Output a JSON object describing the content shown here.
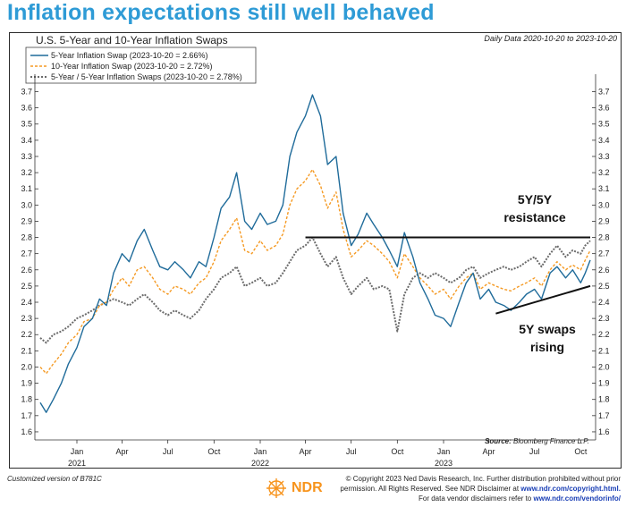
{
  "headline": "Inflation expectations still well behaved",
  "footer": {
    "customized": "Customized version of B781C",
    "copyright_line1": "© Copyright 2023 Ned Davis Research, Inc. Further distribution prohibited without prior",
    "copyright_line2_pre": "permission. All Rights Reserved. See NDR Disclaimer at",
    "copyright_link1": "www.ndr.com/copyright.html.",
    "copyright_line3_pre": "For data vendor disclaimers refer to",
    "copyright_link2": "www.ndr.com/vendorinfo/",
    "logo_text": "NDR"
  },
  "colors": {
    "headline": "#2e9bd6",
    "five_year": "#1f6b9a",
    "ten_year": "#f59a23",
    "five_five": "#6b6b6b",
    "logo": "#f7941d"
  },
  "chart_data": {
    "type": "line",
    "title": "U.S. 5-Year and 10-Year Inflation Swaps",
    "subtitle": "Daily Data 2020-10-20 to 2023-10-20",
    "source_label": "Source:",
    "source": "Bloomberg Finance L.P.",
    "ylim": [
      1.55,
      3.78
    ],
    "y_ticks": [
      "1.6",
      "1.7",
      "1.8",
      "1.9",
      "2.0",
      "2.1",
      "2.2",
      "2.3",
      "2.4",
      "2.5",
      "2.6",
      "2.7",
      "2.8",
      "2.9",
      "3.0",
      "3.1",
      "3.2",
      "3.3",
      "3.4",
      "3.5",
      "3.6",
      "3.7"
    ],
    "x_ticks": [
      "Jan",
      "Apr",
      "Jul",
      "Oct",
      "Jan",
      "Apr",
      "Jul",
      "Oct",
      "Jan",
      "Apr",
      "Jul",
      "Oct"
    ],
    "x_tick_dates": [
      "2021-01",
      "2021-04",
      "2021-07",
      "2021-10",
      "2022-01",
      "2022-04",
      "2022-07",
      "2022-10",
      "2023-01",
      "2023-04",
      "2023-07",
      "2023-10"
    ],
    "x_years": [
      {
        "label": "2021",
        "date": "2021-01"
      },
      {
        "label": "2022",
        "date": "2022-01"
      },
      {
        "label": "2023",
        "date": "2023-01"
      }
    ],
    "x_range": [
      "2020-10-20",
      "2023-10-20"
    ],
    "grid": false,
    "legend_position": "top-left",
    "series": [
      {
        "name": "5-Year Inflation Swap (2023-10-20 = 2.66%)",
        "style": "solid",
        "points": [
          [
            "2020-10-20",
            1.78
          ],
          [
            "2020-11-01",
            1.72
          ],
          [
            "2020-11-15",
            1.8
          ],
          [
            "2020-12-01",
            1.9
          ],
          [
            "2020-12-15",
            2.02
          ],
          [
            "2021-01-01",
            2.12
          ],
          [
            "2021-01-15",
            2.25
          ],
          [
            "2021-02-01",
            2.3
          ],
          [
            "2021-02-15",
            2.42
          ],
          [
            "2021-03-01",
            2.38
          ],
          [
            "2021-03-15",
            2.58
          ],
          [
            "2021-04-01",
            2.7
          ],
          [
            "2021-04-15",
            2.65
          ],
          [
            "2021-05-01",
            2.78
          ],
          [
            "2021-05-15",
            2.85
          ],
          [
            "2021-06-01",
            2.72
          ],
          [
            "2021-06-15",
            2.62
          ],
          [
            "2021-07-01",
            2.6
          ],
          [
            "2021-07-15",
            2.65
          ],
          [
            "2021-08-01",
            2.6
          ],
          [
            "2021-08-15",
            2.55
          ],
          [
            "2021-09-01",
            2.65
          ],
          [
            "2021-09-15",
            2.62
          ],
          [
            "2021-10-01",
            2.8
          ],
          [
            "2021-10-15",
            2.98
          ],
          [
            "2021-11-01",
            3.05
          ],
          [
            "2021-11-15",
            3.2
          ],
          [
            "2021-12-01",
            2.9
          ],
          [
            "2021-12-15",
            2.85
          ],
          [
            "2022-01-01",
            2.95
          ],
          [
            "2022-01-15",
            2.88
          ],
          [
            "2022-02-01",
            2.9
          ],
          [
            "2022-02-15",
            3.0
          ],
          [
            "2022-03-01",
            3.3
          ],
          [
            "2022-03-15",
            3.45
          ],
          [
            "2022-04-01",
            3.55
          ],
          [
            "2022-04-15",
            3.68
          ],
          [
            "2022-05-01",
            3.55
          ],
          [
            "2022-05-15",
            3.25
          ],
          [
            "2022-06-01",
            3.3
          ],
          [
            "2022-06-15",
            2.95
          ],
          [
            "2022-07-01",
            2.75
          ],
          [
            "2022-07-15",
            2.82
          ],
          [
            "2022-08-01",
            2.95
          ],
          [
            "2022-08-15",
            2.88
          ],
          [
            "2022-09-01",
            2.8
          ],
          [
            "2022-09-15",
            2.72
          ],
          [
            "2022-10-01",
            2.62
          ],
          [
            "2022-10-15",
            2.83
          ],
          [
            "2022-11-01",
            2.68
          ],
          [
            "2022-11-15",
            2.52
          ],
          [
            "2022-12-01",
            2.42
          ],
          [
            "2022-12-15",
            2.32
          ],
          [
            "2023-01-01",
            2.3
          ],
          [
            "2023-01-15",
            2.25
          ],
          [
            "2023-02-01",
            2.4
          ],
          [
            "2023-02-15",
            2.52
          ],
          [
            "2023-03-01",
            2.58
          ],
          [
            "2023-03-15",
            2.42
          ],
          [
            "2023-04-01",
            2.48
          ],
          [
            "2023-04-15",
            2.4
          ],
          [
            "2023-05-01",
            2.38
          ],
          [
            "2023-05-15",
            2.35
          ],
          [
            "2023-06-01",
            2.4
          ],
          [
            "2023-06-15",
            2.45
          ],
          [
            "2023-07-01",
            2.48
          ],
          [
            "2023-07-15",
            2.42
          ],
          [
            "2023-08-01",
            2.58
          ],
          [
            "2023-08-15",
            2.62
          ],
          [
            "2023-09-01",
            2.55
          ],
          [
            "2023-09-15",
            2.6
          ],
          [
            "2023-10-01",
            2.52
          ],
          [
            "2023-10-10",
            2.58
          ],
          [
            "2023-10-20",
            2.66
          ]
        ]
      },
      {
        "name": "10-Year Inflation Swap (2023-10-20 = 2.72%)",
        "style": "dashed",
        "points": [
          [
            "2020-10-20",
            2.0
          ],
          [
            "2020-11-01",
            1.96
          ],
          [
            "2020-11-15",
            2.02
          ],
          [
            "2020-12-01",
            2.08
          ],
          [
            "2020-12-15",
            2.15
          ],
          [
            "2021-01-01",
            2.2
          ],
          [
            "2021-01-15",
            2.28
          ],
          [
            "2021-02-01",
            2.3
          ],
          [
            "2021-02-15",
            2.38
          ],
          [
            "2021-03-01",
            2.4
          ],
          [
            "2021-03-15",
            2.48
          ],
          [
            "2021-04-01",
            2.55
          ],
          [
            "2021-04-15",
            2.5
          ],
          [
            "2021-05-01",
            2.6
          ],
          [
            "2021-05-15",
            2.62
          ],
          [
            "2021-06-01",
            2.55
          ],
          [
            "2021-06-15",
            2.48
          ],
          [
            "2021-07-01",
            2.45
          ],
          [
            "2021-07-15",
            2.5
          ],
          [
            "2021-08-01",
            2.48
          ],
          [
            "2021-08-15",
            2.45
          ],
          [
            "2021-09-01",
            2.52
          ],
          [
            "2021-09-15",
            2.55
          ],
          [
            "2021-10-01",
            2.65
          ],
          [
            "2021-10-15",
            2.78
          ],
          [
            "2021-11-01",
            2.85
          ],
          [
            "2021-11-15",
            2.92
          ],
          [
            "2021-12-01",
            2.72
          ],
          [
            "2021-12-15",
            2.7
          ],
          [
            "2022-01-01",
            2.78
          ],
          [
            "2022-01-15",
            2.72
          ],
          [
            "2022-02-01",
            2.75
          ],
          [
            "2022-02-15",
            2.82
          ],
          [
            "2022-03-01",
            3.0
          ],
          [
            "2022-03-15",
            3.1
          ],
          [
            "2022-04-01",
            3.15
          ],
          [
            "2022-04-15",
            3.22
          ],
          [
            "2022-05-01",
            3.12
          ],
          [
            "2022-05-15",
            2.98
          ],
          [
            "2022-06-01",
            3.08
          ],
          [
            "2022-06-15",
            2.85
          ],
          [
            "2022-07-01",
            2.68
          ],
          [
            "2022-07-15",
            2.72
          ],
          [
            "2022-08-01",
            2.78
          ],
          [
            "2022-08-15",
            2.75
          ],
          [
            "2022-09-01",
            2.7
          ],
          [
            "2022-09-15",
            2.65
          ],
          [
            "2022-10-01",
            2.55
          ],
          [
            "2022-10-15",
            2.7
          ],
          [
            "2022-11-01",
            2.62
          ],
          [
            "2022-11-15",
            2.55
          ],
          [
            "2022-12-01",
            2.5
          ],
          [
            "2022-12-15",
            2.45
          ],
          [
            "2023-01-01",
            2.48
          ],
          [
            "2023-01-15",
            2.42
          ],
          [
            "2023-02-01",
            2.5
          ],
          [
            "2023-02-15",
            2.55
          ],
          [
            "2023-03-01",
            2.58
          ],
          [
            "2023-03-15",
            2.48
          ],
          [
            "2023-04-01",
            2.52
          ],
          [
            "2023-04-15",
            2.5
          ],
          [
            "2023-05-01",
            2.48
          ],
          [
            "2023-05-15",
            2.47
          ],
          [
            "2023-06-01",
            2.5
          ],
          [
            "2023-06-15",
            2.52
          ],
          [
            "2023-07-01",
            2.55
          ],
          [
            "2023-07-15",
            2.5
          ],
          [
            "2023-08-01",
            2.6
          ],
          [
            "2023-08-15",
            2.65
          ],
          [
            "2023-09-01",
            2.6
          ],
          [
            "2023-09-15",
            2.63
          ],
          [
            "2023-10-01",
            2.6
          ],
          [
            "2023-10-10",
            2.66
          ],
          [
            "2023-10-20",
            2.72
          ]
        ]
      },
      {
        "name": "5-Year / 5-Year Inflation Swaps (2023-10-20 = 2.78%)",
        "style": "dotted",
        "points": [
          [
            "2020-10-20",
            2.18
          ],
          [
            "2020-11-01",
            2.15
          ],
          [
            "2020-11-15",
            2.2
          ],
          [
            "2020-12-01",
            2.22
          ],
          [
            "2020-12-15",
            2.25
          ],
          [
            "2021-01-01",
            2.3
          ],
          [
            "2021-01-15",
            2.32
          ],
          [
            "2021-02-01",
            2.35
          ],
          [
            "2021-02-15",
            2.38
          ],
          [
            "2021-03-01",
            2.4
          ],
          [
            "2021-03-15",
            2.42
          ],
          [
            "2021-04-01",
            2.4
          ],
          [
            "2021-04-15",
            2.38
          ],
          [
            "2021-05-01",
            2.42
          ],
          [
            "2021-05-15",
            2.45
          ],
          [
            "2021-06-01",
            2.4
          ],
          [
            "2021-06-15",
            2.35
          ],
          [
            "2021-07-01",
            2.32
          ],
          [
            "2021-07-15",
            2.35
          ],
          [
            "2021-08-01",
            2.32
          ],
          [
            "2021-08-15",
            2.3
          ],
          [
            "2021-09-01",
            2.35
          ],
          [
            "2021-09-15",
            2.42
          ],
          [
            "2021-10-01",
            2.48
          ],
          [
            "2021-10-15",
            2.55
          ],
          [
            "2021-11-01",
            2.58
          ],
          [
            "2021-11-15",
            2.62
          ],
          [
            "2021-12-01",
            2.5
          ],
          [
            "2021-12-15",
            2.52
          ],
          [
            "2022-01-01",
            2.55
          ],
          [
            "2022-01-15",
            2.5
          ],
          [
            "2022-02-01",
            2.52
          ],
          [
            "2022-02-15",
            2.58
          ],
          [
            "2022-03-01",
            2.65
          ],
          [
            "2022-03-15",
            2.72
          ],
          [
            "2022-04-01",
            2.75
          ],
          [
            "2022-04-15",
            2.8
          ],
          [
            "2022-05-01",
            2.7
          ],
          [
            "2022-05-15",
            2.62
          ],
          [
            "2022-06-01",
            2.68
          ],
          [
            "2022-06-15",
            2.55
          ],
          [
            "2022-07-01",
            2.45
          ],
          [
            "2022-07-15",
            2.5
          ],
          [
            "2022-08-01",
            2.55
          ],
          [
            "2022-08-15",
            2.48
          ],
          [
            "2022-09-01",
            2.5
          ],
          [
            "2022-09-15",
            2.48
          ],
          [
            "2022-10-01",
            2.22
          ],
          [
            "2022-10-15",
            2.45
          ],
          [
            "2022-11-01",
            2.55
          ],
          [
            "2022-11-15",
            2.58
          ],
          [
            "2022-12-01",
            2.55
          ],
          [
            "2022-12-15",
            2.58
          ],
          [
            "2023-01-01",
            2.55
          ],
          [
            "2023-01-15",
            2.52
          ],
          [
            "2023-02-01",
            2.55
          ],
          [
            "2023-02-15",
            2.6
          ],
          [
            "2023-03-01",
            2.62
          ],
          [
            "2023-03-15",
            2.55
          ],
          [
            "2023-04-01",
            2.58
          ],
          [
            "2023-04-15",
            2.6
          ],
          [
            "2023-05-01",
            2.62
          ],
          [
            "2023-05-15",
            2.6
          ],
          [
            "2023-06-01",
            2.62
          ],
          [
            "2023-06-15",
            2.65
          ],
          [
            "2023-07-01",
            2.68
          ],
          [
            "2023-07-15",
            2.62
          ],
          [
            "2023-08-01",
            2.7
          ],
          [
            "2023-08-15",
            2.75
          ],
          [
            "2023-09-01",
            2.68
          ],
          [
            "2023-09-15",
            2.72
          ],
          [
            "2023-10-01",
            2.7
          ],
          [
            "2023-10-10",
            2.75
          ],
          [
            "2023-10-20",
            2.78
          ]
        ]
      }
    ],
    "annotations": [
      {
        "text_lines": [
          "5Y/5Y",
          "resistance"
        ],
        "type": "horizontal-line",
        "y": 2.8,
        "from": "2022-04-01",
        "to": "2023-10-20"
      },
      {
        "text_lines": [
          "5Y swaps",
          "rising"
        ],
        "type": "trendline",
        "from": [
          "2023-04-15",
          2.33
        ],
        "to": [
          "2023-10-20",
          2.5
        ]
      }
    ]
  }
}
